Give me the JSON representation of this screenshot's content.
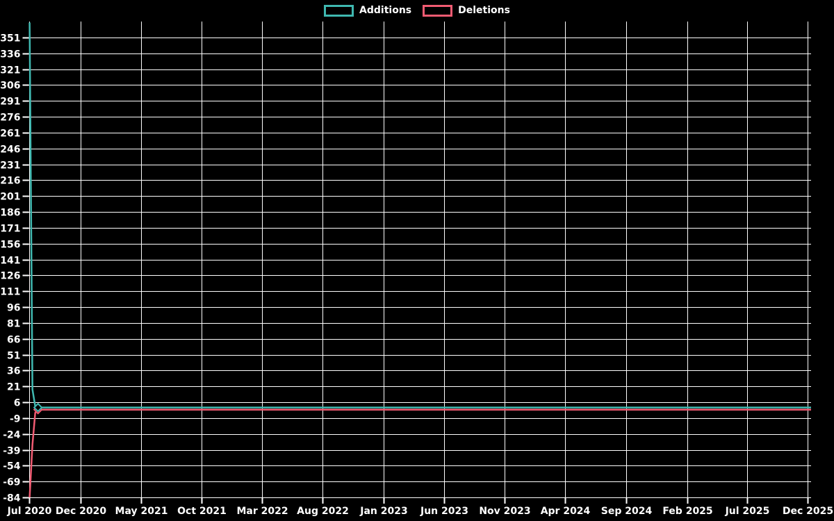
{
  "legend": {
    "items": [
      {
        "label": "Additions",
        "color": "#3fb8b0"
      },
      {
        "label": "Deletions",
        "color": "#f15b72"
      }
    ]
  },
  "chart_data": {
    "type": "line",
    "title": "",
    "background_color": "#000000",
    "grid": true,
    "grid_color": "#ffffff",
    "text_color": "#ffffff",
    "legend_position": "top-center",
    "y_axis": {
      "label": "",
      "range": [
        -84,
        366
      ],
      "tick_step": 15,
      "ticks": [
        351,
        336,
        321,
        306,
        291,
        276,
        261,
        246,
        231,
        216,
        201,
        186,
        171,
        156,
        141,
        126,
        111,
        96,
        81,
        66,
        51,
        36,
        21,
        6,
        -9,
        -24,
        -39,
        -54,
        -69,
        -84
      ]
    },
    "x_axis": {
      "label": "",
      "range_dates": [
        "2020-07-24",
        "2025-12-09"
      ],
      "tick_dates": [
        "2020-07-24",
        "2020-12-01",
        "2021-05-01",
        "2021-10-01",
        "2022-03-01",
        "2022-08-01",
        "2023-01-01",
        "2023-06-01",
        "2023-11-01",
        "2024-04-01",
        "2024-09-01",
        "2025-02-01",
        "2025-07-01",
        "2025-12-01"
      ],
      "tick_labels": [
        "Jul 2020",
        "Dec 2020",
        "May 2021",
        "Oct 2021",
        "Mar 2022",
        "Aug 2022",
        "Jan 2023",
        "Jun 2023",
        "Nov 2023",
        "Apr 2024",
        "Sep 2024",
        "Feb 2025",
        "Jul 2025",
        "Dec 2025"
      ]
    },
    "series": [
      {
        "name": "Additions",
        "color": "#3fb8b0",
        "marker_shape": "diamond",
        "points": [
          [
            "2020-07-26",
            365
          ],
          [
            "2020-08-02",
            18
          ],
          [
            "2020-08-09",
            2
          ],
          [
            "2020-08-16",
            1
          ],
          [
            "2025-12-09",
            1
          ]
        ],
        "marker_points": [
          [
            "2020-08-16",
            1
          ]
        ]
      },
      {
        "name": "Deletions",
        "color": "#f15b72",
        "marker_shape": "diamond",
        "points": [
          [
            "2020-07-26",
            -84
          ],
          [
            "2020-08-02",
            -34
          ],
          [
            "2020-08-09",
            -4
          ],
          [
            "2020-08-16",
            -1
          ],
          [
            "2025-12-09",
            -1
          ]
        ],
        "marker_points": [
          [
            "2020-08-16",
            -1
          ]
        ]
      }
    ]
  }
}
